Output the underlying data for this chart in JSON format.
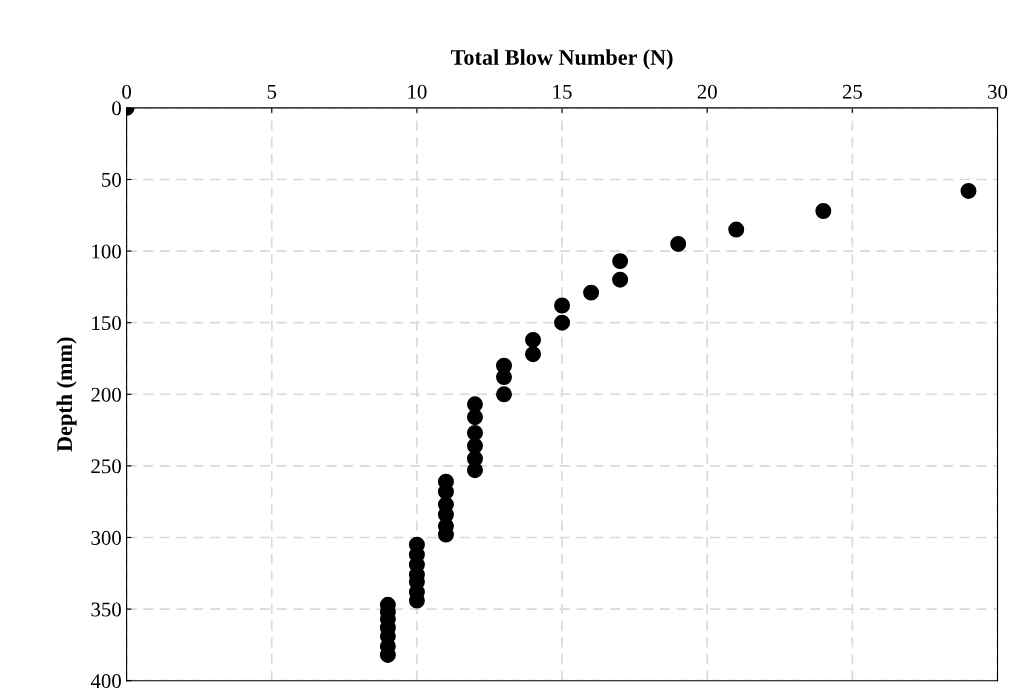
{
  "chart_data": {
    "type": "scatter",
    "xlabel": "Total Blow Number (N)",
    "ylabel": "Depth (mm)",
    "x": [
      0,
      29,
      24,
      21,
      19,
      17,
      17,
      16,
      15,
      15,
      14,
      14,
      13,
      13,
      13,
      12,
      12,
      12,
      12,
      12,
      12,
      11,
      11,
      11,
      11,
      11,
      11,
      10,
      10,
      10,
      10,
      10,
      10,
      10,
      9,
      9,
      9,
      9,
      9,
      9,
      9
    ],
    "series": [
      {
        "color": "#000000",
        "values": [
          0,
          58,
          72,
          85,
          95,
          107,
          120,
          129,
          138,
          150,
          162,
          172,
          180,
          188,
          200,
          207,
          216,
          227,
          236,
          245,
          253,
          261,
          268,
          277,
          284,
          292,
          298,
          305,
          312,
          319,
          326,
          331,
          338,
          344,
          347,
          352,
          357,
          363,
          369,
          376,
          382
        ]
      }
    ],
    "xlim": [
      0,
      30
    ],
    "xticks": [
      0,
      5,
      10,
      15,
      20,
      25,
      30
    ],
    "ylim": [
      400,
      0
    ],
    "yticks": [
      0,
      50,
      100,
      150,
      200,
      250,
      300,
      350,
      400
    ],
    "grid": true,
    "marker": "circle"
  }
}
